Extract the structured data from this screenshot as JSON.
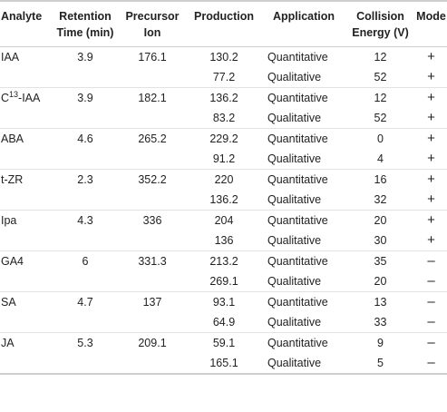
{
  "headers": {
    "analyte": "Analyte",
    "retention_line1": "Retention",
    "retention_line2": "Time (min)",
    "precursor_line1": "Precursor",
    "precursor_line2": "Ion",
    "production": "Production",
    "application": "Application",
    "collision_line1": "Collision",
    "collision_line2": "Energy (V)",
    "mode": "Mode"
  },
  "rows": [
    {
      "analyte": "IAA",
      "retention": "3.9",
      "precursor": "176.1",
      "production": "130.2",
      "application": "Quantitative",
      "energy": "12",
      "mode": "+"
    },
    {
      "analyte": "",
      "retention": "",
      "precursor": "",
      "production": "77.2",
      "application": "Qualitative",
      "energy": "52",
      "mode": "+"
    },
    {
      "analyte": "C",
      "analyte_sup": "13",
      "analyte_suffix": "-IAA",
      "retention": "3.9",
      "precursor": "182.1",
      "production": "136.2",
      "application": "Quantitative",
      "energy": "12",
      "mode": "+"
    },
    {
      "analyte": "",
      "retention": "",
      "precursor": "",
      "production": "83.2",
      "application": "Qualitative",
      "energy": "52",
      "mode": "+"
    },
    {
      "analyte": "ABA",
      "retention": "4.6",
      "precursor": "265.2",
      "production": "229.2",
      "application": "Quantitative",
      "energy": "0",
      "mode": "+"
    },
    {
      "analyte": "",
      "retention": "",
      "precursor": "",
      "production": "91.2",
      "application": "Qualitative",
      "energy": "4",
      "mode": "+"
    },
    {
      "analyte": "t-ZR",
      "retention": "2.3",
      "precursor": "352.2",
      "production": "220",
      "application": "Quantitative",
      "energy": "16",
      "mode": "+"
    },
    {
      "analyte": "",
      "retention": "",
      "precursor": "",
      "production": "136.2",
      "application": "Qualitative",
      "energy": "32",
      "mode": "+"
    },
    {
      "analyte": "Ipa",
      "retention": "4.3",
      "precursor": "336",
      "production": "204",
      "application": "Quantitative",
      "energy": "20",
      "mode": "+"
    },
    {
      "analyte": "",
      "retention": "",
      "precursor": "",
      "production": "136",
      "application": "Qualitative",
      "energy": "30",
      "mode": "+"
    },
    {
      "analyte": "GA4",
      "retention": "6",
      "precursor": "331.3",
      "production": "213.2",
      "application": "Quantitative",
      "energy": "35",
      "mode": "–"
    },
    {
      "analyte": "",
      "retention": "",
      "precursor": "",
      "production": "269.1",
      "application": "Qualitative",
      "energy": "20",
      "mode": "–"
    },
    {
      "analyte": "SA",
      "retention": "4.7",
      "precursor": "137",
      "production": "93.1",
      "application": "Quantitative",
      "energy": "13",
      "mode": "–"
    },
    {
      "analyte": "",
      "retention": "",
      "precursor": "",
      "production": "64.9",
      "application": "Qualitative",
      "energy": "33",
      "mode": "–"
    },
    {
      "analyte": "JA",
      "retention": "5.3",
      "precursor": "209.1",
      "production": "59.1",
      "application": "Quantitative",
      "energy": "9",
      "mode": "–"
    },
    {
      "analyte": "",
      "retention": "",
      "precursor": "",
      "production": "165.1",
      "application": "Qualitative",
      "energy": "5",
      "mode": "–"
    }
  ]
}
